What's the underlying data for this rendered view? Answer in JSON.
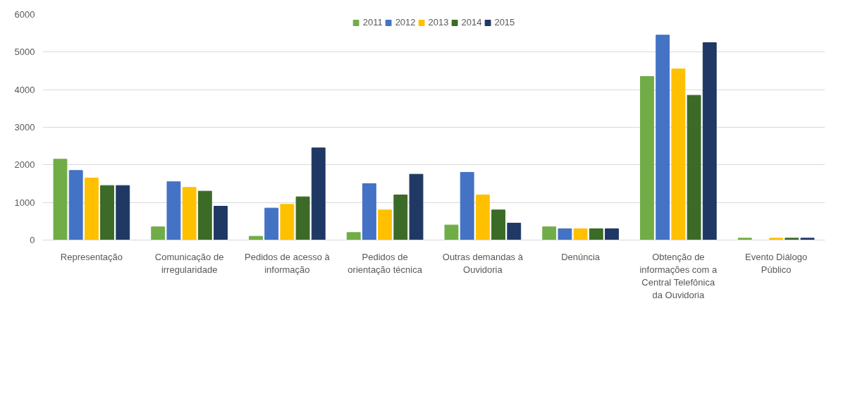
{
  "chart_data": {
    "type": "bar",
    "categories": [
      "Representação",
      "Comunicação de irregularidade",
      "Pedidos de acesso à informação",
      "Pedidos de orientação técnica",
      "Outras demandas à Ouvidoria",
      "Denúncia",
      "Obtenção de informações com a Central Telefônica da Ouvidoria",
      "Evento Diálogo Público"
    ],
    "series": [
      {
        "name": "2011",
        "color": "#70ad47",
        "values": [
          2150,
          350,
          100,
          200,
          400,
          350,
          4350,
          50
        ]
      },
      {
        "name": "2012",
        "color": "#4472c4",
        "values": [
          1850,
          1550,
          850,
          1500,
          1800,
          300,
          5450,
          0
        ]
      },
      {
        "name": "2013",
        "color": "#ffc000",
        "values": [
          1650,
          1400,
          950,
          800,
          1200,
          300,
          4550,
          50
        ]
      },
      {
        "name": "2014",
        "color": "#3b6b27",
        "values": [
          1450,
          1300,
          1150,
          1200,
          800,
          300,
          3850,
          50
        ]
      },
      {
        "name": "2015",
        "color": "#203864",
        "values": [
          1450,
          900,
          2450,
          1750,
          450,
          300,
          5250,
          50
        ]
      }
    ],
    "ylim": [
      0,
      6000
    ],
    "yticks": [
      0,
      1000,
      2000,
      3000,
      4000,
      5000,
      6000
    ],
    "grid": "y",
    "legend": "top"
  }
}
